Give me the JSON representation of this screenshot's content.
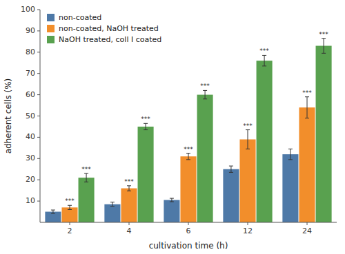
{
  "chart_data": {
    "type": "bar",
    "xlabel": "cultivation time (h)",
    "ylabel": "adherent cells (%)",
    "categories": [
      "2",
      "4",
      "6",
      "12",
      "24"
    ],
    "series": [
      {
        "name": "non-coated",
        "values": [
          5,
          8.5,
          10.5,
          25,
          32
        ],
        "errors": [
          0.8,
          1.0,
          0.8,
          1.5,
          2.5
        ]
      },
      {
        "name": "non-coated, NaOH treated",
        "values": [
          7,
          16,
          31,
          39,
          54
        ],
        "errors": [
          1.0,
          1.2,
          1.5,
          4.5,
          5.0
        ],
        "annotations": [
          "***",
          "***",
          "***",
          "***",
          "***"
        ]
      },
      {
        "name": "NaOH treated, coll I coated",
        "values": [
          21,
          45,
          60,
          76,
          83
        ],
        "errors": [
          2.0,
          1.5,
          2.0,
          2.5,
          3.5
        ],
        "annotations": [
          "***",
          "***",
          "***",
          "***",
          "***"
        ]
      }
    ],
    "ylim": [
      0,
      100
    ],
    "yticks": [
      10,
      20,
      30,
      40,
      50,
      60,
      70,
      80,
      90,
      100
    ],
    "grid": false,
    "legend": "upper left"
  }
}
